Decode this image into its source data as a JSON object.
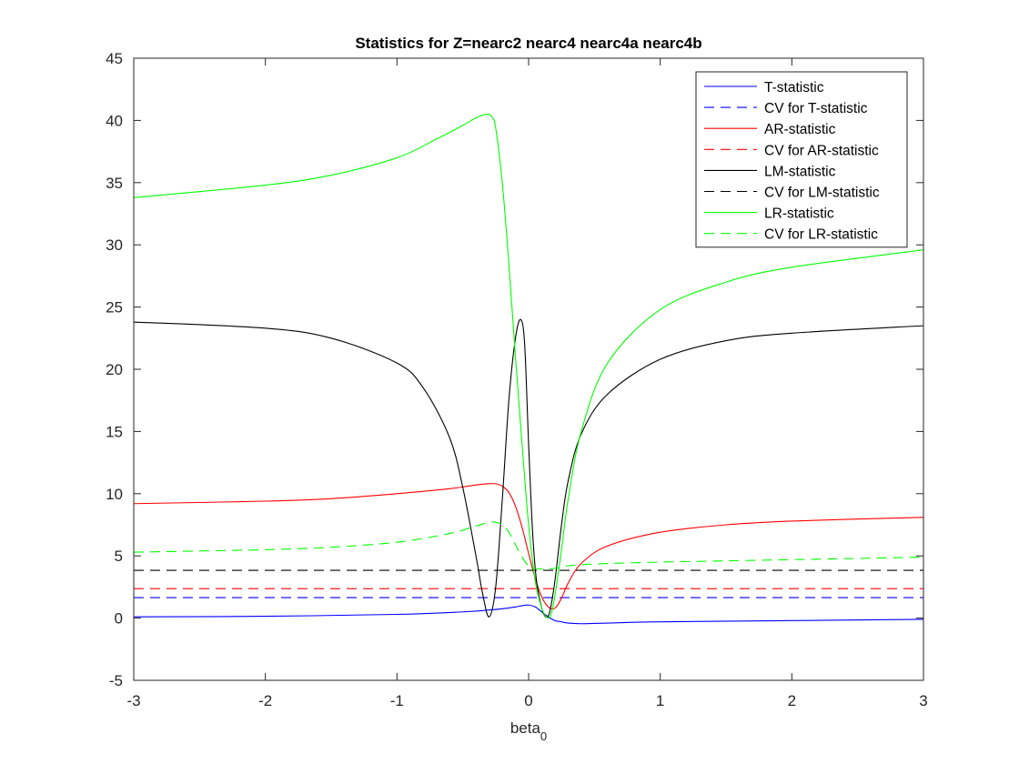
{
  "chart_data": {
    "type": "line",
    "title": "Statistics for Z=nearc2 nearc4 nearc4a nearc4b",
    "xlabel": "beta",
    "xlabel_subscript": "0",
    "ylabel": "",
    "xlim": [
      -3,
      3
    ],
    "ylim": [
      -5,
      45
    ],
    "xticks": [
      -3,
      -2,
      -1,
      0,
      1,
      2,
      3
    ],
    "yticks": [
      -5,
      0,
      5,
      10,
      15,
      20,
      25,
      30,
      35,
      40,
      45
    ],
    "grid": false,
    "legend_position": "top-right",
    "series": [
      {
        "name": "T-statistic",
        "color": "#0000ff",
        "dash": "solid",
        "x": [
          -3,
          -2,
          -1,
          -0.5,
          -0.3,
          -0.2,
          -0.1,
          -0.05,
          0,
          0.05,
          0.1,
          0.15,
          0.2,
          0.25,
          0.3,
          0.4,
          0.6,
          1,
          2,
          3
        ],
        "y": [
          0.1,
          0.15,
          0.3,
          0.5,
          0.65,
          0.75,
          0.9,
          1.0,
          1.05,
          0.9,
          0.5,
          0.1,
          -0.2,
          -0.3,
          -0.4,
          -0.45,
          -0.4,
          -0.3,
          -0.2,
          -0.1
        ]
      },
      {
        "name": "CV for T-statistic",
        "color": "#0000ff",
        "dash": "dashed",
        "x": [
          -3,
          3
        ],
        "y": [
          1.645,
          1.645
        ]
      },
      {
        "name": "AR-statistic",
        "color": "#ff0000",
        "dash": "solid",
        "x": [
          -3,
          -2,
          -1.5,
          -1,
          -0.6,
          -0.4,
          -0.3,
          -0.25,
          -0.2,
          -0.15,
          -0.1,
          -0.05,
          0,
          0.05,
          0.1,
          0.15,
          0.2,
          0.25,
          0.3,
          0.4,
          0.6,
          1,
          1.5,
          2,
          3
        ],
        "y": [
          9.2,
          9.4,
          9.6,
          10.0,
          10.4,
          10.7,
          10.8,
          10.8,
          10.6,
          10.1,
          9.0,
          7.3,
          5.2,
          3.2,
          1.7,
          0.9,
          0.8,
          1.6,
          2.8,
          4.4,
          5.8,
          6.9,
          7.5,
          7.8,
          8.1
        ]
      },
      {
        "name": "CV for AR-statistic",
        "color": "#ff0000",
        "dash": "dashed",
        "x": [
          -3,
          3
        ],
        "y": [
          2.37,
          2.37
        ]
      },
      {
        "name": "LM-statistic",
        "color": "#000000",
        "dash": "solid",
        "x": [
          -3,
          -2,
          -1.5,
          -1,
          -0.8,
          -0.6,
          -0.5,
          -0.4,
          -0.35,
          -0.3,
          -0.25,
          -0.2,
          -0.15,
          -0.1,
          -0.06,
          -0.03,
          0,
          0.03,
          0.06,
          0.1,
          0.13,
          0.16,
          0.2,
          0.25,
          0.3,
          0.4,
          0.6,
          1,
          1.5,
          2,
          3
        ],
        "y": [
          23.8,
          23.3,
          22.5,
          20.5,
          18.5,
          14.5,
          10.5,
          5.0,
          2.0,
          0.1,
          2.5,
          9.5,
          17.5,
          22.5,
          24.0,
          22.0,
          14.0,
          7.0,
          3.0,
          0.8,
          0.1,
          0.5,
          3.0,
          7.5,
          11.0,
          14.8,
          18.0,
          20.8,
          22.3,
          22.9,
          23.5
        ]
      },
      {
        "name": "CV for LM-statistic",
        "color": "#000000",
        "dash": "dashed",
        "x": [
          -3,
          3
        ],
        "y": [
          3.84,
          3.84
        ]
      },
      {
        "name": "LR-statistic",
        "color": "#00ff00",
        "dash": "solid",
        "x": [
          -3,
          -2,
          -1.5,
          -1,
          -0.7,
          -0.5,
          -0.4,
          -0.32,
          -0.28,
          -0.25,
          -0.2,
          -0.15,
          -0.1,
          -0.05,
          0,
          0.05,
          0.1,
          0.14,
          0.17,
          0.2,
          0.25,
          0.3,
          0.4,
          0.6,
          1,
          1.5,
          2,
          3
        ],
        "y": [
          33.8,
          34.8,
          35.6,
          37.0,
          38.5,
          39.6,
          40.2,
          40.5,
          40.3,
          39.4,
          35.0,
          28.5,
          21.0,
          14.0,
          7.5,
          3.0,
          0.8,
          0.05,
          0.3,
          1.8,
          5.5,
          9.5,
          15.0,
          20.5,
          24.8,
          27.0,
          28.2,
          29.6
        ]
      },
      {
        "name": "CV for LR-statistic",
        "color": "#00ff00",
        "dash": "dashed",
        "x": [
          -3,
          -2,
          -1.5,
          -1,
          -0.6,
          -0.4,
          -0.3,
          -0.25,
          -0.2,
          -0.15,
          -0.1,
          -0.05,
          0,
          0.05,
          0.1,
          0.2,
          0.3,
          0.5,
          1,
          2,
          3
        ],
        "y": [
          5.3,
          5.5,
          5.7,
          6.1,
          6.8,
          7.4,
          7.7,
          7.7,
          7.5,
          6.9,
          5.9,
          4.9,
          4.2,
          4.0,
          3.95,
          4.0,
          4.2,
          4.35,
          4.5,
          4.7,
          4.9
        ]
      }
    ]
  }
}
